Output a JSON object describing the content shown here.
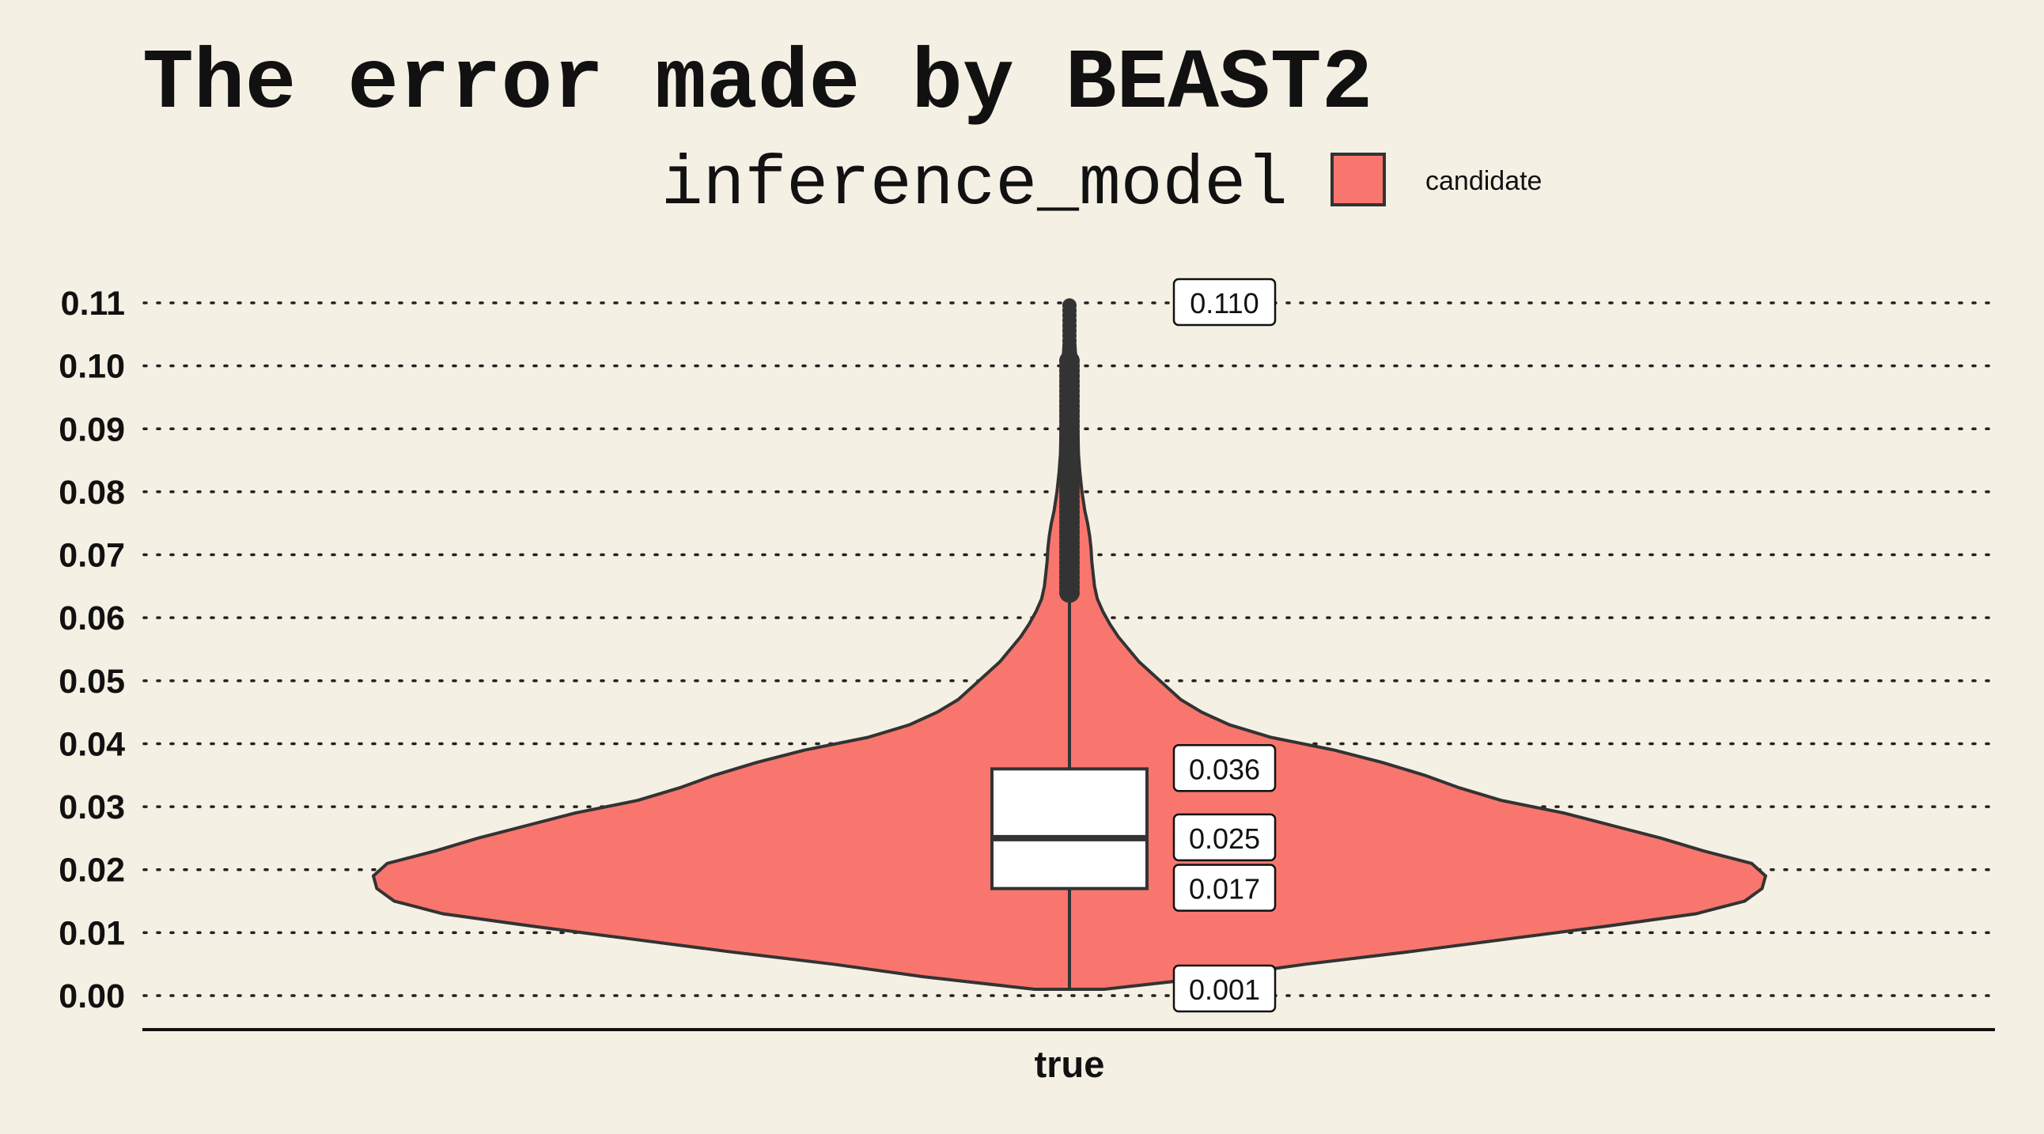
{
  "chart_data": {
    "type": "violin",
    "title": "The error made by BEAST2",
    "legend": {
      "title": "inference_model",
      "position": "top",
      "entries": [
        {
          "name": "candidate",
          "color": "#f8766d"
        }
      ]
    },
    "x_category": "true",
    "ylim": [
      0.0,
      0.11
    ],
    "yticks": [
      "0.00",
      "0.01",
      "0.02",
      "0.03",
      "0.04",
      "0.05",
      "0.06",
      "0.07",
      "0.08",
      "0.09",
      "0.10",
      "0.11"
    ],
    "grid": "horizontal-dotted",
    "box": {
      "min": 0.001,
      "q1": 0.017,
      "median": 0.025,
      "q3": 0.036,
      "max": 0.11
    },
    "labels": [
      "0.110",
      "0.036",
      "0.025",
      "0.017",
      "0.001"
    ],
    "whisker_upper": 0.064,
    "outlier_range": [
      0.064,
      0.11
    ],
    "density": [
      [
        0.001,
        0.05
      ],
      [
        0.003,
        0.21
      ],
      [
        0.005,
        0.34
      ],
      [
        0.007,
        0.49
      ],
      [
        0.009,
        0.63
      ],
      [
        0.011,
        0.77
      ],
      [
        0.013,
        0.9
      ],
      [
        0.015,
        0.97
      ],
      [
        0.017,
        0.995
      ],
      [
        0.019,
        1.0
      ],
      [
        0.021,
        0.98
      ],
      [
        0.023,
        0.91
      ],
      [
        0.025,
        0.85
      ],
      [
        0.027,
        0.78
      ],
      [
        0.029,
        0.71
      ],
      [
        0.031,
        0.62
      ],
      [
        0.033,
        0.56
      ],
      [
        0.035,
        0.51
      ],
      [
        0.037,
        0.45
      ],
      [
        0.039,
        0.38
      ],
      [
        0.041,
        0.29
      ],
      [
        0.043,
        0.23
      ],
      [
        0.045,
        0.19
      ],
      [
        0.047,
        0.16
      ],
      [
        0.049,
        0.14
      ],
      [
        0.051,
        0.12
      ],
      [
        0.053,
        0.1
      ],
      [
        0.055,
        0.085
      ],
      [
        0.057,
        0.07
      ],
      [
        0.059,
        0.058
      ],
      [
        0.061,
        0.048
      ],
      [
        0.063,
        0.04
      ],
      [
        0.065,
        0.036
      ],
      [
        0.067,
        0.034
      ],
      [
        0.069,
        0.032
      ],
      [
        0.071,
        0.031
      ],
      [
        0.073,
        0.029
      ],
      [
        0.075,
        0.026
      ],
      [
        0.077,
        0.022
      ],
      [
        0.08,
        0.018
      ],
      [
        0.083,
        0.015
      ],
      [
        0.086,
        0.013
      ],
      [
        0.09,
        0.012
      ],
      [
        0.094,
        0.012
      ],
      [
        0.097,
        0.011
      ],
      [
        0.1,
        0.01
      ],
      [
        0.103,
        0.008
      ],
      [
        0.106,
        0.006
      ],
      [
        0.108,
        0.004
      ],
      [
        0.11,
        0.0
      ]
    ]
  }
}
